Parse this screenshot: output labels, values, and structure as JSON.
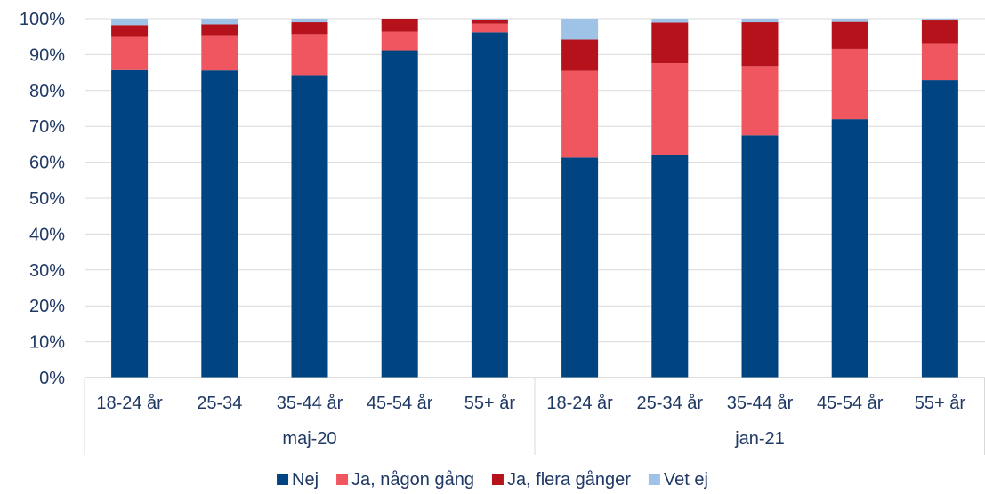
{
  "chart_data": {
    "type": "bar",
    "stacked": true,
    "groups": [
      {
        "label": "maj-20",
        "categories": [
          "18-24 år",
          "25-34",
          "35-44 år",
          "45-54 år",
          "55+ år"
        ]
      },
      {
        "label": "jan-21",
        "categories": [
          "18-24 år",
          "25-34 år",
          "35-44 år",
          "45-54 år",
          "55+ år"
        ]
      }
    ],
    "series": [
      {
        "name": "Nej",
        "color": "#004481",
        "values": [
          85.7,
          85.6,
          84.3,
          91.2,
          96.2,
          61.3,
          62.0,
          67.5,
          72.0,
          82.9
        ]
      },
      {
        "name": "Ja, någon gång",
        "color": "#f0565f",
        "values": [
          9.2,
          9.8,
          11.4,
          5.2,
          2.4,
          24.2,
          25.6,
          19.3,
          19.6,
          10.3
        ]
      },
      {
        "name": "Ja, flera gånger",
        "color": "#b5121b",
        "values": [
          3.3,
          3.0,
          3.3,
          3.6,
          1.0,
          8.7,
          11.3,
          12.2,
          7.5,
          6.3
        ]
      },
      {
        "name": "Vet ej",
        "color": "#9ec3e6",
        "values": [
          1.8,
          1.6,
          1.0,
          0.0,
          0.4,
          5.8,
          1.1,
          1.0,
          0.9,
          0.5
        ]
      }
    ],
    "y_ticks": [
      "0%",
      "10%",
      "20%",
      "30%",
      "40%",
      "50%",
      "60%",
      "70%",
      "80%",
      "90%",
      "100%"
    ],
    "ylim": [
      0,
      100
    ],
    "grid": true,
    "legend_position": "bottom",
    "title": "",
    "xlabel": "",
    "ylabel": ""
  }
}
